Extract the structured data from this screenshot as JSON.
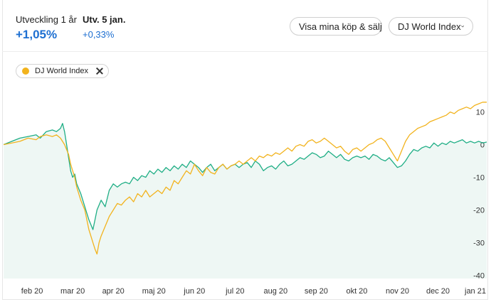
{
  "header": {
    "dev_1y_label": "Utveckling 1 år",
    "dev_1y_value": "+1,05%",
    "dev_date_label": "Utv. 5 jan.",
    "dev_date_value": "+0,33%",
    "buttons": {
      "show_trades": "Visa mina köp & sälj",
      "index_select": "DJ World Index"
    }
  },
  "legend_chip": {
    "label": "DJ World Index",
    "color": "#f2b31d"
  },
  "colors": {
    "main_line": "#1fae85",
    "index_line": "#f2b31d",
    "area_fill": "#eef7f4",
    "accent_text": "#1d6fd1"
  },
  "chart_data": {
    "type": "line",
    "x_unit": "months since 2020-01-01",
    "xlim": [
      0.28,
      12.2
    ],
    "ylim": [
      -41,
      16
    ],
    "y_ticks": [
      10,
      0,
      -10,
      -20,
      -30,
      -40
    ],
    "x_ticks": [
      {
        "label": "feb 20",
        "x": 1
      },
      {
        "label": "mar 20",
        "x": 2
      },
      {
        "label": "apr 20",
        "x": 3
      },
      {
        "label": "maj 20",
        "x": 4
      },
      {
        "label": "jun 20",
        "x": 5
      },
      {
        "label": "jul 20",
        "x": 6
      },
      {
        "label": "aug 20",
        "x": 7
      },
      {
        "label": "sep 20",
        "x": 8
      },
      {
        "label": "okt 20",
        "x": 9
      },
      {
        "label": "nov 20",
        "x": 10
      },
      {
        "label": "dec 20",
        "x": 11
      },
      {
        "label": "jan 21",
        "x": 12
      }
    ],
    "series": [
      {
        "color": "#1fae85",
        "fill": true,
        "points": [
          [
            0.3,
            0
          ],
          [
            0.5,
            1
          ],
          [
            0.7,
            2
          ],
          [
            0.9,
            2.5
          ],
          [
            1.1,
            3
          ],
          [
            1.2,
            2
          ],
          [
            1.35,
            4
          ],
          [
            1.5,
            4.5
          ],
          [
            1.6,
            4
          ],
          [
            1.7,
            5
          ],
          [
            1.75,
            6.5
          ],
          [
            1.8,
            4
          ],
          [
            1.85,
            0
          ],
          [
            1.9,
            -4
          ],
          [
            1.95,
            -8
          ],
          [
            2.0,
            -10
          ],
          [
            2.05,
            -9
          ],
          [
            2.1,
            -12
          ],
          [
            2.2,
            -15
          ],
          [
            2.3,
            -19
          ],
          [
            2.4,
            -23
          ],
          [
            2.5,
            -26
          ],
          [
            2.55,
            -23
          ],
          [
            2.6,
            -20
          ],
          [
            2.7,
            -17
          ],
          [
            2.8,
            -19
          ],
          [
            2.9,
            -14
          ],
          [
            3.0,
            -12
          ],
          [
            3.1,
            -13
          ],
          [
            3.2,
            -12
          ],
          [
            3.3,
            -11.5
          ],
          [
            3.4,
            -12
          ],
          [
            3.5,
            -10
          ],
          [
            3.6,
            -11
          ],
          [
            3.7,
            -9.5
          ],
          [
            3.8,
            -10
          ],
          [
            3.9,
            -8
          ],
          [
            4.0,
            -9
          ],
          [
            4.1,
            -7.5
          ],
          [
            4.2,
            -8.5
          ],
          [
            4.3,
            -7
          ],
          [
            4.4,
            -8
          ],
          [
            4.5,
            -6.5
          ],
          [
            4.6,
            -7.5
          ],
          [
            4.7,
            -6
          ],
          [
            4.8,
            -7
          ],
          [
            4.9,
            -5
          ],
          [
            5.0,
            -6
          ],
          [
            5.1,
            -7
          ],
          [
            5.2,
            -8.5
          ],
          [
            5.3,
            -7
          ],
          [
            5.4,
            -6
          ],
          [
            5.5,
            -8
          ],
          [
            5.6,
            -7
          ],
          [
            5.7,
            -6
          ],
          [
            5.8,
            -7.5
          ],
          [
            5.9,
            -6.5
          ],
          [
            6.0,
            -6
          ],
          [
            6.1,
            -7
          ],
          [
            6.2,
            -6
          ],
          [
            6.3,
            -5.5
          ],
          [
            6.4,
            -7
          ],
          [
            6.5,
            -5
          ],
          [
            6.6,
            -6
          ],
          [
            6.7,
            -8
          ],
          [
            6.8,
            -7
          ],
          [
            6.9,
            -6.5
          ],
          [
            7.0,
            -7.5
          ],
          [
            7.1,
            -6
          ],
          [
            7.2,
            -5
          ],
          [
            7.3,
            -6.5
          ],
          [
            7.4,
            -6
          ],
          [
            7.5,
            -5
          ],
          [
            7.6,
            -4
          ],
          [
            7.7,
            -4.5
          ],
          [
            7.8,
            -3.5
          ],
          [
            7.9,
            -2.5
          ],
          [
            8.0,
            -3
          ],
          [
            8.1,
            -4
          ],
          [
            8.2,
            -3.5
          ],
          [
            8.3,
            -2
          ],
          [
            8.4,
            -3
          ],
          [
            8.5,
            -4
          ],
          [
            8.6,
            -3
          ],
          [
            8.7,
            -4.5
          ],
          [
            8.8,
            -5
          ],
          [
            8.9,
            -4
          ],
          [
            9.0,
            -3.5
          ],
          [
            9.1,
            -4
          ],
          [
            9.2,
            -3.5
          ],
          [
            9.3,
            -4.5
          ],
          [
            9.4,
            -3
          ],
          [
            9.5,
            -3.5
          ],
          [
            9.6,
            -4.5
          ],
          [
            9.7,
            -5
          ],
          [
            9.8,
            -4
          ],
          [
            9.9,
            -5.5
          ],
          [
            10.0,
            -7
          ],
          [
            10.1,
            -6.5
          ],
          [
            10.2,
            -5
          ],
          [
            10.3,
            -3
          ],
          [
            10.4,
            -1.5
          ],
          [
            10.5,
            -2
          ],
          [
            10.6,
            -1
          ],
          [
            10.7,
            -0.5
          ],
          [
            10.8,
            -1
          ],
          [
            10.9,
            0.5
          ],
          [
            11.0,
            -0.5
          ],
          [
            11.1,
            0.5
          ],
          [
            11.2,
            0
          ],
          [
            11.3,
            1
          ],
          [
            11.4,
            0.5
          ],
          [
            11.5,
            1
          ],
          [
            11.6,
            1.5
          ],
          [
            11.7,
            0.5
          ],
          [
            11.8,
            1
          ],
          [
            11.9,
            0.5
          ],
          [
            12.0,
            1
          ],
          [
            12.1,
            0.5
          ],
          [
            12.2,
            0.8
          ]
        ]
      },
      {
        "color": "#f2b31d",
        "fill": false,
        "points": [
          [
            0.3,
            0
          ],
          [
            0.5,
            0.5
          ],
          [
            0.7,
            1
          ],
          [
            0.9,
            2
          ],
          [
            1.1,
            1.5
          ],
          [
            1.2,
            2.5
          ],
          [
            1.35,
            3
          ],
          [
            1.5,
            2.5
          ],
          [
            1.6,
            3
          ],
          [
            1.7,
            2
          ],
          [
            1.8,
            0
          ],
          [
            1.9,
            -3
          ],
          [
            1.95,
            -6
          ],
          [
            2.0,
            -8
          ],
          [
            2.05,
            -10
          ],
          [
            2.1,
            -13
          ],
          [
            2.2,
            -17
          ],
          [
            2.3,
            -20
          ],
          [
            2.4,
            -26
          ],
          [
            2.5,
            -30
          ],
          [
            2.55,
            -32
          ],
          [
            2.6,
            -33.5
          ],
          [
            2.65,
            -30
          ],
          [
            2.7,
            -28
          ],
          [
            2.8,
            -25
          ],
          [
            2.9,
            -22
          ],
          [
            3.0,
            -20
          ],
          [
            3.1,
            -18
          ],
          [
            3.2,
            -18.5
          ],
          [
            3.3,
            -17
          ],
          [
            3.4,
            -16
          ],
          [
            3.5,
            -17.5
          ],
          [
            3.6,
            -15
          ],
          [
            3.7,
            -16
          ],
          [
            3.8,
            -14
          ],
          [
            3.9,
            -16
          ],
          [
            4.0,
            -15
          ],
          [
            4.1,
            -14
          ],
          [
            4.2,
            -15
          ],
          [
            4.3,
            -13
          ],
          [
            4.4,
            -14
          ],
          [
            4.5,
            -11
          ],
          [
            4.6,
            -12
          ],
          [
            4.7,
            -10
          ],
          [
            4.8,
            -8
          ],
          [
            4.9,
            -9
          ],
          [
            5.0,
            -6
          ],
          [
            5.1,
            -8
          ],
          [
            5.2,
            -9.5
          ],
          [
            5.3,
            -7
          ],
          [
            5.4,
            -8.5
          ],
          [
            5.5,
            -9
          ],
          [
            5.6,
            -7
          ],
          [
            5.7,
            -6
          ],
          [
            5.8,
            -7.5
          ],
          [
            5.9,
            -6.5
          ],
          [
            6.0,
            -6
          ],
          [
            6.1,
            -5
          ],
          [
            6.2,
            -6
          ],
          [
            6.3,
            -5
          ],
          [
            6.4,
            -4
          ],
          [
            6.5,
            -5
          ],
          [
            6.6,
            -3.5
          ],
          [
            6.7,
            -4
          ],
          [
            6.8,
            -3
          ],
          [
            6.9,
            -3.5
          ],
          [
            7.0,
            -2.5
          ],
          [
            7.1,
            -3
          ],
          [
            7.2,
            -2
          ],
          [
            7.3,
            -1
          ],
          [
            7.4,
            -2
          ],
          [
            7.5,
            -0.5
          ],
          [
            7.6,
            0
          ],
          [
            7.7,
            -0.5
          ],
          [
            7.8,
            1
          ],
          [
            7.9,
            1.5
          ],
          [
            8.0,
            0.5
          ],
          [
            8.1,
            1
          ],
          [
            8.2,
            2
          ],
          [
            8.3,
            1
          ],
          [
            8.4,
            0
          ],
          [
            8.5,
            -1
          ],
          [
            8.6,
            -0.5
          ],
          [
            8.7,
            -2
          ],
          [
            8.8,
            -3
          ],
          [
            8.9,
            -1.5
          ],
          [
            9.0,
            -1
          ],
          [
            9.1,
            -2
          ],
          [
            9.2,
            -1
          ],
          [
            9.3,
            0
          ],
          [
            9.4,
            0.5
          ],
          [
            9.5,
            1.5
          ],
          [
            9.6,
            2
          ],
          [
            9.7,
            1
          ],
          [
            9.8,
            -1
          ],
          [
            9.9,
            -3
          ],
          [
            10.0,
            -5
          ],
          [
            10.1,
            -2
          ],
          [
            10.2,
            1
          ],
          [
            10.3,
            3
          ],
          [
            10.4,
            4
          ],
          [
            10.5,
            5
          ],
          [
            10.6,
            5.5
          ],
          [
            10.7,
            6
          ],
          [
            10.8,
            7
          ],
          [
            10.9,
            7.5
          ],
          [
            11.0,
            8
          ],
          [
            11.1,
            8.5
          ],
          [
            11.2,
            9
          ],
          [
            11.3,
            10
          ],
          [
            11.4,
            9.5
          ],
          [
            11.5,
            10.5
          ],
          [
            11.6,
            11
          ],
          [
            11.7,
            11.5
          ],
          [
            11.8,
            11
          ],
          [
            11.9,
            12
          ],
          [
            12.0,
            12.5
          ],
          [
            12.1,
            13
          ],
          [
            12.2,
            13
          ]
        ]
      }
    ]
  }
}
